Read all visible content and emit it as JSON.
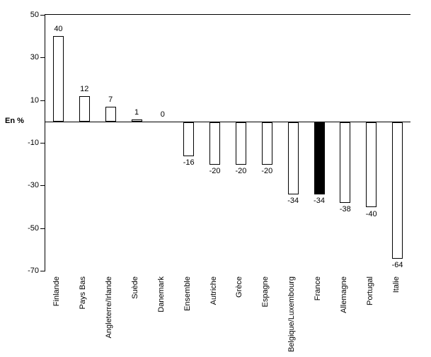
{
  "chart_data": {
    "type": "bar",
    "title": "",
    "xlabel": "",
    "ylabel": "En %",
    "ylim": [
      -70,
      50
    ],
    "yticks": [
      50,
      30,
      10,
      -10,
      -30,
      -50,
      -70
    ],
    "categories": [
      "Finlande",
      "Pays Bas",
      "Angleterre/Irlande",
      "Suède",
      "Danemark",
      "Ensemble",
      "Autriche",
      "Grèce",
      "Espagne",
      "Belgique/Luxembourg",
      "France",
      "Allemagne",
      "Portugal",
      "Italie"
    ],
    "values": [
      40,
      12,
      7,
      1,
      0,
      -16,
      -20,
      -20,
      -20,
      -34,
      -34,
      -38,
      -40,
      -64
    ],
    "highlighted_category": "France",
    "grid": false,
    "legend": false,
    "colors": {
      "bar_fill": "#ffffff",
      "bar_stroke": "#000000",
      "highlight_fill": "#000000",
      "axis": "#000000",
      "background": "#ffffff"
    }
  }
}
